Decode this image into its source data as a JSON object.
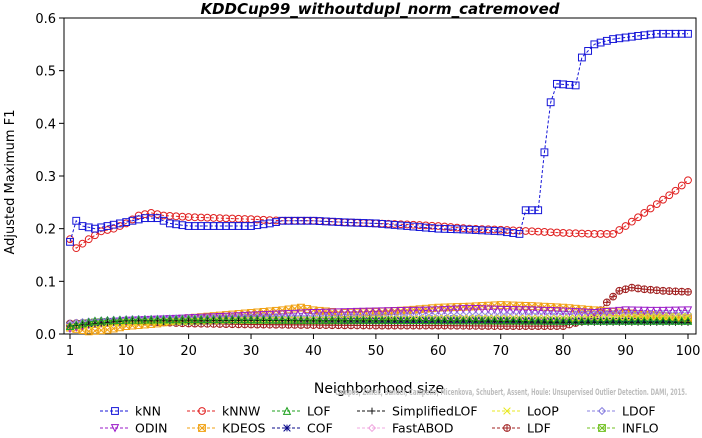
{
  "chart_data": {
    "type": "line",
    "title": "KDDCup99_withoutdupl_norm_catremoved",
    "xlabel": "Neighborhood size",
    "ylabel": "Adjusted Maximum F1",
    "xlim": [
      0,
      100
    ],
    "ylim": [
      0,
      0.6
    ],
    "xticks": [
      1,
      10,
      20,
      30,
      40,
      50,
      60,
      70,
      80,
      90,
      100
    ],
    "yticks": [
      0.0,
      0.1,
      0.2,
      0.3,
      0.4,
      0.5,
      0.6
    ],
    "xtick_labels": [
      "1",
      "10",
      "20",
      "30",
      "40",
      "50",
      "60",
      "70",
      "80",
      "90",
      "100"
    ],
    "ytick_labels": [
      "0.0",
      "0.1",
      "0.2",
      "0.3",
      "0.4",
      "0.5",
      "0.6"
    ],
    "grid": false,
    "legend_position": "bottom",
    "watermark": "Campos, Zimek, Sander, Campello, Micenkova, Schubert, Assent, Houle: Unsupervised Outlier Detection. DAMI, 2015.",
    "series": [
      {
        "name": "kNN",
        "color": "#1515d8",
        "marker": "square",
        "dashed": true,
        "points": [
          [
            1,
            0.175
          ],
          [
            2,
            0.215
          ],
          [
            3,
            0.205
          ],
          [
            5,
            0.2
          ],
          [
            7,
            0.205
          ],
          [
            9,
            0.21
          ],
          [
            11,
            0.215
          ],
          [
            13,
            0.22
          ],
          [
            15,
            0.22
          ],
          [
            17,
            0.21
          ],
          [
            20,
            0.205
          ],
          [
            25,
            0.205
          ],
          [
            30,
            0.205
          ],
          [
            33,
            0.21
          ],
          [
            35,
            0.215
          ],
          [
            40,
            0.215
          ],
          [
            45,
            0.212
          ],
          [
            50,
            0.21
          ],
          [
            55,
            0.205
          ],
          [
            60,
            0.2
          ],
          [
            65,
            0.198
          ],
          [
            70,
            0.195
          ],
          [
            73,
            0.19
          ],
          [
            74,
            0.235
          ],
          [
            76,
            0.235
          ],
          [
            77,
            0.345
          ],
          [
            78,
            0.44
          ],
          [
            79,
            0.475
          ],
          [
            82,
            0.472
          ],
          [
            83,
            0.525
          ],
          [
            85,
            0.55
          ],
          [
            88,
            0.56
          ],
          [
            92,
            0.566
          ],
          [
            95,
            0.57
          ],
          [
            100,
            0.57
          ]
        ]
      },
      {
        "name": "kNNW",
        "color": "#e02020",
        "marker": "circle",
        "dashed": true,
        "points": [
          [
            1,
            0.18
          ],
          [
            2,
            0.163
          ],
          [
            4,
            0.18
          ],
          [
            6,
            0.195
          ],
          [
            8,
            0.2
          ],
          [
            10,
            0.21
          ],
          [
            12,
            0.225
          ],
          [
            14,
            0.23
          ],
          [
            16,
            0.225
          ],
          [
            20,
            0.222
          ],
          [
            25,
            0.22
          ],
          [
            30,
            0.218
          ],
          [
            35,
            0.215
          ],
          [
            40,
            0.215
          ],
          [
            45,
            0.212
          ],
          [
            50,
            0.21
          ],
          [
            55,
            0.208
          ],
          [
            60,
            0.205
          ],
          [
            65,
            0.2
          ],
          [
            70,
            0.198
          ],
          [
            75,
            0.195
          ],
          [
            80,
            0.192
          ],
          [
            85,
            0.19
          ],
          [
            88,
            0.19
          ],
          [
            90,
            0.205
          ],
          [
            93,
            0.23
          ],
          [
            96,
            0.255
          ],
          [
            98,
            0.272
          ],
          [
            100,
            0.292
          ]
        ]
      },
      {
        "name": "LOF",
        "color": "#1ea01e",
        "marker": "triangle-up",
        "dashed": true,
        "points": [
          [
            1,
            0.015
          ],
          [
            5,
            0.025
          ],
          [
            10,
            0.027
          ],
          [
            20,
            0.028
          ],
          [
            30,
            0.028
          ],
          [
            40,
            0.027
          ],
          [
            50,
            0.027
          ],
          [
            60,
            0.026
          ],
          [
            70,
            0.026
          ],
          [
            80,
            0.025
          ],
          [
            90,
            0.025
          ],
          [
            100,
            0.025
          ]
        ]
      },
      {
        "name": "SimplifiedLOF",
        "color": "#111111",
        "marker": "plus",
        "dashed": true,
        "points": [
          [
            1,
            0.015
          ],
          [
            5,
            0.02
          ],
          [
            10,
            0.025
          ],
          [
            20,
            0.025
          ],
          [
            30,
            0.026
          ],
          [
            40,
            0.025
          ],
          [
            50,
            0.025
          ],
          [
            60,
            0.025
          ],
          [
            70,
            0.024
          ],
          [
            80,
            0.022
          ],
          [
            90,
            0.022
          ],
          [
            100,
            0.022
          ]
        ]
      },
      {
        "name": "LoOP",
        "color": "#e8e820",
        "marker": "x",
        "dashed": true,
        "points": [
          [
            1,
            0.012
          ],
          [
            5,
            0.018
          ],
          [
            10,
            0.022
          ],
          [
            20,
            0.024
          ],
          [
            30,
            0.026
          ],
          [
            40,
            0.027
          ],
          [
            50,
            0.028
          ],
          [
            60,
            0.03
          ],
          [
            70,
            0.03
          ],
          [
            80,
            0.03
          ],
          [
            90,
            0.032
          ],
          [
            100,
            0.033
          ]
        ]
      },
      {
        "name": "LDOF",
        "color": "#8a80e0",
        "marker": "diamond",
        "dashed": true,
        "points": [
          [
            1,
            0.02
          ],
          [
            5,
            0.025
          ],
          [
            10,
            0.028
          ],
          [
            20,
            0.03
          ],
          [
            30,
            0.032
          ],
          [
            40,
            0.033
          ],
          [
            50,
            0.034
          ],
          [
            60,
            0.035
          ],
          [
            70,
            0.036
          ],
          [
            80,
            0.037
          ],
          [
            90,
            0.038
          ],
          [
            100,
            0.038
          ]
        ]
      },
      {
        "name": "ODIN",
        "color": "#9a18c8",
        "marker": "triangle-down",
        "dashed": true,
        "points": [
          [
            1,
            0.01
          ],
          [
            5,
            0.02
          ],
          [
            10,
            0.025
          ],
          [
            20,
            0.03
          ],
          [
            30,
            0.035
          ],
          [
            40,
            0.04
          ],
          [
            50,
            0.043
          ],
          [
            60,
            0.045
          ],
          [
            65,
            0.048
          ],
          [
            70,
            0.046
          ],
          [
            75,
            0.045
          ],
          [
            80,
            0.043
          ],
          [
            85,
            0.04
          ],
          [
            90,
            0.045
          ],
          [
            95,
            0.044
          ],
          [
            100,
            0.045
          ]
        ]
      },
      {
        "name": "KDEOS",
        "color": "#f0a010",
        "marker": "square-x",
        "dashed": true,
        "points": [
          [
            1,
            0.012
          ],
          [
            4,
            0.005
          ],
          [
            7,
            0.008
          ],
          [
            10,
            0.015
          ],
          [
            15,
            0.02
          ],
          [
            20,
            0.03
          ],
          [
            25,
            0.035
          ],
          [
            30,
            0.04
          ],
          [
            35,
            0.045
          ],
          [
            38,
            0.05
          ],
          [
            40,
            0.045
          ],
          [
            45,
            0.04
          ],
          [
            50,
            0.042
          ],
          [
            55,
            0.045
          ],
          [
            60,
            0.05
          ],
          [
            65,
            0.052
          ],
          [
            70,
            0.055
          ],
          [
            75,
            0.053
          ],
          [
            80,
            0.05
          ],
          [
            85,
            0.045
          ],
          [
            90,
            0.04
          ],
          [
            95,
            0.035
          ],
          [
            100,
            0.03
          ]
        ]
      },
      {
        "name": "COF",
        "color": "#0a0a8a",
        "marker": "star",
        "dashed": true,
        "points": [
          [
            1,
            0.015
          ],
          [
            5,
            0.02
          ],
          [
            10,
            0.022
          ],
          [
            20,
            0.024
          ],
          [
            30,
            0.026
          ],
          [
            40,
            0.026
          ],
          [
            50,
            0.025
          ],
          [
            60,
            0.025
          ],
          [
            70,
            0.025
          ],
          [
            80,
            0.024
          ],
          [
            90,
            0.024
          ],
          [
            100,
            0.024
          ]
        ]
      },
      {
        "name": "FastABOD",
        "color": "#f0a8e0",
        "marker": "diamond",
        "dashed": true,
        "points": [
          [
            1,
            0.018
          ],
          [
            5,
            0.022
          ],
          [
            10,
            0.025
          ],
          [
            20,
            0.027
          ],
          [
            30,
            0.028
          ],
          [
            40,
            0.028
          ],
          [
            50,
            0.028
          ],
          [
            60,
            0.028
          ],
          [
            70,
            0.028
          ],
          [
            80,
            0.028
          ],
          [
            90,
            0.03
          ],
          [
            100,
            0.03
          ]
        ]
      },
      {
        "name": "LDF",
        "color": "#a02020",
        "marker": "circle-plus",
        "dashed": true,
        "points": [
          [
            1,
            0.02
          ],
          [
            5,
            0.022
          ],
          [
            10,
            0.025
          ],
          [
            20,
            0.02
          ],
          [
            30,
            0.018
          ],
          [
            40,
            0.017
          ],
          [
            50,
            0.016
          ],
          [
            60,
            0.016
          ],
          [
            70,
            0.015
          ],
          [
            80,
            0.015
          ],
          [
            85,
            0.03
          ],
          [
            87,
            0.06
          ],
          [
            89,
            0.082
          ],
          [
            91,
            0.088
          ],
          [
            93,
            0.085
          ],
          [
            96,
            0.082
          ],
          [
            100,
            0.08
          ]
        ]
      },
      {
        "name": "INFLO",
        "color": "#70c020",
        "marker": "square-star",
        "dashed": true,
        "points": [
          [
            1,
            0.016
          ],
          [
            5,
            0.022
          ],
          [
            10,
            0.024
          ],
          [
            20,
            0.025
          ],
          [
            30,
            0.026
          ],
          [
            40,
            0.026
          ],
          [
            50,
            0.026
          ],
          [
            60,
            0.026
          ],
          [
            70,
            0.025
          ],
          [
            80,
            0.025
          ],
          [
            90,
            0.026
          ],
          [
            100,
            0.026
          ]
        ]
      }
    ]
  }
}
